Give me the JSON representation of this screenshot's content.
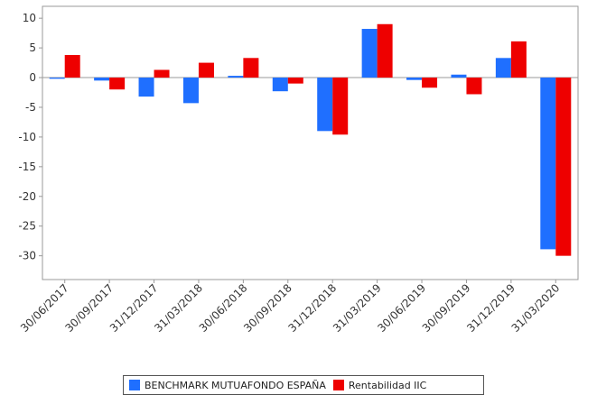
{
  "chart_data": {
    "type": "bar",
    "categories": [
      "30/06/2017",
      "30/09/2017",
      "31/12/2017",
      "31/03/2018",
      "30/06/2018",
      "30/09/2018",
      "31/12/2018",
      "31/03/2019",
      "30/06/2019",
      "30/09/2019",
      "31/12/2019",
      "31/03/2020"
    ],
    "series": [
      {
        "name": "BENCHMARK MUTUAFONDO ESPAÑA",
        "color": "#1f6fff",
        "values": [
          -0.2,
          -0.5,
          -3.2,
          -4.3,
          0.3,
          -2.3,
          -9.0,
          8.2,
          -0.4,
          0.5,
          3.3,
          -28.9
        ]
      },
      {
        "name": "Rentabilidad IIC",
        "color": "#ee0000",
        "values": [
          3.8,
          -2.0,
          1.3,
          2.5,
          3.3,
          -1.0,
          -9.6,
          9.0,
          -1.7,
          -2.8,
          6.1,
          -30.0
        ]
      }
    ],
    "yticks": [
      10,
      5,
      0,
      -5,
      -10,
      -15,
      -20,
      -25,
      -30
    ],
    "ylim": [
      -34,
      12
    ],
    "grid": false,
    "legend_position": "bottom"
  }
}
